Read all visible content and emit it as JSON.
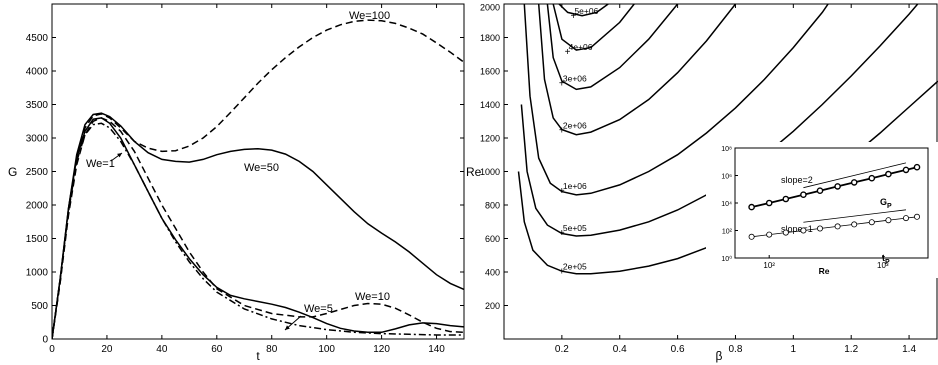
{
  "chart_data": [
    {
      "type": "line",
      "xlabel": "t",
      "ylabel": "G",
      "xlim": [
        0,
        150
      ],
      "ylim": [
        0,
        5000
      ],
      "x_ticks": [
        0,
        20,
        40,
        60,
        80,
        100,
        120,
        140
      ],
      "y_ticks": [
        0,
        500,
        1000,
        1500,
        2000,
        2500,
        3000,
        3500,
        4000,
        4500
      ],
      "grid": false,
      "series": [
        {
          "name": "We=1",
          "style": "dash-dot",
          "x": [
            0,
            3,
            6,
            9,
            12,
            15,
            18,
            21,
            25,
            30,
            35,
            40,
            45,
            50,
            55,
            60,
            70,
            80,
            90,
            100,
            110,
            120,
            130,
            140,
            150
          ],
          "y": [
            0,
            900,
            1900,
            2650,
            3050,
            3200,
            3220,
            3150,
            2950,
            2600,
            2200,
            1800,
            1450,
            1150,
            900,
            700,
            450,
            300,
            200,
            140,
            100,
            80,
            70,
            60,
            60
          ]
        },
        {
          "name": "We=5",
          "style": "solid",
          "x": [
            0,
            3,
            6,
            9,
            12,
            15,
            18,
            21,
            25,
            30,
            35,
            40,
            45,
            50,
            55,
            60,
            65,
            70,
            75,
            80,
            85,
            90,
            95,
            100,
            105,
            110,
            115,
            120,
            125,
            130,
            135,
            140,
            145,
            150
          ],
          "y": [
            0,
            900,
            1950,
            2700,
            3100,
            3280,
            3300,
            3220,
            3000,
            2600,
            2200,
            1800,
            1480,
            1200,
            960,
            770,
            650,
            600,
            560,
            520,
            470,
            400,
            320,
            230,
            160,
            120,
            100,
            100,
            150,
            210,
            240,
            230,
            200,
            180
          ]
        },
        {
          "name": "We=10",
          "style": "dashed",
          "x": [
            0,
            3,
            6,
            9,
            12,
            15,
            18,
            21,
            25,
            30,
            35,
            40,
            45,
            50,
            55,
            60,
            70,
            80,
            90,
            95,
            100,
            105,
            110,
            115,
            120,
            125,
            130,
            135,
            140,
            145,
            150
          ],
          "y": [
            0,
            850,
            1850,
            2600,
            3050,
            3250,
            3300,
            3250,
            3100,
            2800,
            2400,
            2000,
            1650,
            1300,
            1000,
            750,
            500,
            380,
            330,
            330,
            380,
            440,
            500,
            530,
            520,
            460,
            360,
            250,
            160,
            110,
            100
          ]
        },
        {
          "name": "We=50",
          "style": "solid",
          "x": [
            0,
            3,
            6,
            9,
            12,
            15,
            18,
            21,
            25,
            30,
            35,
            40,
            45,
            50,
            55,
            60,
            65,
            70,
            75,
            80,
            85,
            90,
            95,
            100,
            105,
            110,
            115,
            120,
            125,
            130,
            135,
            140,
            145,
            150
          ],
          "y": [
            0,
            900,
            1950,
            2750,
            3200,
            3350,
            3370,
            3320,
            3180,
            2950,
            2780,
            2680,
            2650,
            2640,
            2680,
            2750,
            2800,
            2830,
            2840,
            2820,
            2760,
            2650,
            2500,
            2300,
            2100,
            1900,
            1720,
            1580,
            1450,
            1300,
            1130,
            960,
            830,
            740
          ]
        },
        {
          "name": "We=100",
          "style": "dashed",
          "x": [
            0,
            3,
            6,
            9,
            12,
            15,
            18,
            21,
            25,
            30,
            35,
            40,
            45,
            50,
            55,
            60,
            65,
            70,
            75,
            80,
            85,
            90,
            95,
            100,
            105,
            110,
            115,
            120,
            125,
            130,
            135,
            140,
            145,
            150
          ],
          "y": [
            0,
            850,
            1900,
            2700,
            3150,
            3330,
            3360,
            3300,
            3150,
            2950,
            2850,
            2800,
            2810,
            2880,
            3000,
            3170,
            3380,
            3600,
            3820,
            4020,
            4200,
            4360,
            4500,
            4610,
            4690,
            4740,
            4760,
            4750,
            4710,
            4640,
            4550,
            4420,
            4280,
            4130
          ]
        }
      ],
      "annotations": [
        {
          "text": "We=1",
          "arrow": true
        },
        {
          "text": "We=5",
          "arrow": true
        },
        {
          "text": "We=10"
        },
        {
          "text": "We=50"
        },
        {
          "text": "We=100"
        }
      ]
    },
    {
      "type": "line",
      "subtype": "contour",
      "xlabel": "β",
      "ylabel": "Re",
      "xlim": [
        0,
        1.5
      ],
      "ylim": [
        0,
        2000
      ],
      "x_ticks": [
        0.2,
        0.4,
        0.6,
        0.8,
        1,
        1.2,
        1.4
      ],
      "x_tick_labels": [
        "0.2",
        "0.4",
        "0.6",
        "0.8",
        "1",
        "1.2",
        "1.4"
      ],
      "y_ticks": [
        200,
        400,
        600,
        800,
        1000,
        1200,
        1400,
        1600,
        1800,
        2000
      ],
      "grid": false,
      "contours": [
        {
          "label": "2e+05",
          "label_at": [
            0.2,
            410
          ],
          "points": [
            [
              0.05,
              1000
            ],
            [
              0.07,
              700
            ],
            [
              0.1,
              530
            ],
            [
              0.15,
              440
            ],
            [
              0.2,
              405
            ],
            [
              0.25,
              390
            ],
            [
              0.3,
              390
            ],
            [
              0.4,
              405
            ],
            [
              0.5,
              435
            ],
            [
              0.6,
              480
            ],
            [
              0.7,
              545
            ],
            [
              0.8,
              625
            ],
            [
              0.9,
              720
            ],
            [
              1.0,
              830
            ],
            [
              1.1,
              950
            ],
            [
              1.2,
              1085
            ],
            [
              1.3,
              1230
            ],
            [
              1.4,
              1385
            ],
            [
              1.5,
              1540
            ]
          ]
        },
        {
          "label": "5e+05",
          "label_at": [
            0.2,
            640
          ],
          "points": [
            [
              0.06,
              1400
            ],
            [
              0.08,
              1000
            ],
            [
              0.11,
              780
            ],
            [
              0.15,
              680
            ],
            [
              0.2,
              630
            ],
            [
              0.25,
              615
            ],
            [
              0.3,
              620
            ],
            [
              0.4,
              650
            ],
            [
              0.5,
              700
            ],
            [
              0.6,
              770
            ],
            [
              0.7,
              860
            ],
            [
              0.8,
              970
            ],
            [
              0.9,
              1095
            ],
            [
              1.0,
              1240
            ],
            [
              1.1,
              1400
            ],
            [
              1.2,
              1570
            ],
            [
              1.3,
              1750
            ],
            [
              1.4,
              1940
            ],
            [
              1.43,
              2000
            ]
          ]
        },
        {
          "label": "1e+06",
          "label_at": [
            0.2,
            890
          ],
          "points": [
            [
              0.07,
              2000
            ],
            [
              0.09,
              1450
            ],
            [
              0.12,
              1080
            ],
            [
              0.16,
              930
            ],
            [
              0.2,
              880
            ],
            [
              0.25,
              860
            ],
            [
              0.3,
              870
            ],
            [
              0.4,
              920
            ],
            [
              0.5,
              1000
            ],
            [
              0.6,
              1100
            ],
            [
              0.7,
              1230
            ],
            [
              0.8,
              1380
            ],
            [
              0.9,
              1550
            ],
            [
              1.0,
              1740
            ],
            [
              1.1,
              1950
            ],
            [
              1.12,
              2000
            ]
          ]
        },
        {
          "label": "2e+06",
          "label_at": [
            0.2,
            1250
          ],
          "points": [
            [
              0.12,
              2000
            ],
            [
              0.14,
              1550
            ],
            [
              0.17,
              1320
            ],
            [
              0.2,
              1250
            ],
            [
              0.25,
              1220
            ],
            [
              0.3,
              1235
            ],
            [
              0.4,
              1310
            ],
            [
              0.5,
              1430
            ],
            [
              0.6,
              1590
            ],
            [
              0.7,
              1780
            ],
            [
              0.8,
              2000
            ]
          ]
        },
        {
          "label": "3e+06",
          "label_at": [
            0.2,
            1530
          ],
          "points": [
            [
              0.15,
              2000
            ],
            [
              0.17,
              1680
            ],
            [
              0.2,
              1540
            ],
            [
              0.25,
              1490
            ],
            [
              0.3,
              1505
            ],
            [
              0.4,
              1620
            ],
            [
              0.5,
              1790
            ],
            [
              0.6,
              2000
            ]
          ]
        },
        {
          "label": "4e+06",
          "label_at": [
            0.22,
            1720
          ],
          "points": [
            [
              0.17,
              2000
            ],
            [
              0.2,
              1790
            ],
            [
              0.25,
              1725
            ],
            [
              0.3,
              1740
            ],
            [
              0.4,
              1890
            ],
            [
              0.45,
              2000
            ]
          ]
        },
        {
          "label": "5e+06",
          "label_at": [
            0.24,
            1935
          ],
          "points": [
            [
              0.19,
              2000
            ],
            [
              0.22,
              1950
            ],
            [
              0.27,
              1930
            ],
            [
              0.32,
              1950
            ],
            [
              0.36,
              2000
            ]
          ]
        }
      ],
      "inset": {
        "type": "scatter",
        "xlabel": "Re",
        "xscale": "log",
        "yscale": "log",
        "xlim": [
          50,
          2500
        ],
        "ylim": [
          1,
          100000000
        ],
        "x_tick_labels": [
          "10²",
          "10³"
        ],
        "y_tick_labels": [
          "10⁰",
          "10²",
          "10⁴",
          "10⁶",
          "10⁸"
        ],
        "series": [
          {
            "name": "G",
            "subscript": "P",
            "x": [
              70,
              100,
              140,
              200,
              280,
              400,
              560,
              800,
              1120,
              1600,
              2000
            ],
            "y": [
              5000,
              10000,
              19600,
              40000,
              78400,
              160000,
              313600,
              640000,
              1254400,
              2560000,
              4000000
            ]
          },
          {
            "name": "t",
            "subscript": "P",
            "x": [
              70,
              100,
              140,
              200,
              280,
              400,
              560,
              800,
              1120,
              1600,
              2000
            ],
            "y": [
              35,
              50,
              70,
              100,
              140,
              200,
              280,
              400,
              560,
              800,
              1000
            ]
          }
        ],
        "slope_lines": [
          {
            "label": "slope=2",
            "x": [
              200,
              1600
            ],
            "y": [
              130000,
              8300000
            ]
          },
          {
            "label": "slope=1",
            "x": [
              200,
              1600
            ],
            "y": [
              400,
              3200
            ]
          }
        ]
      }
    }
  ]
}
